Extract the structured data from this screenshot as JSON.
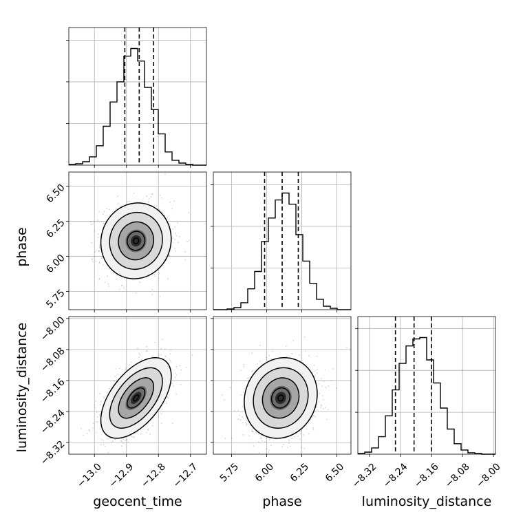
{
  "chart_data": {
    "type": "corner",
    "parameters": [
      "geocent_time",
      "phase",
      "luminosity_distance"
    ],
    "axis_labels": {
      "geocent_time": "geocent_time",
      "phase": "phase",
      "luminosity_distance": "luminosity_distance"
    },
    "ranges": {
      "geocent_time": [
        -13.08,
        -12.65
      ],
      "phase": [
        5.62,
        6.6
      ],
      "luminosity_distance": [
        -8.35,
        -7.995
      ]
    },
    "ticks": {
      "geocent_time": {
        "values": [
          -13.0,
          -12.9,
          -12.8,
          -12.7
        ],
        "labels": [
          "−13.0",
          "−12.9",
          "−12.8",
          "−12.7"
        ]
      },
      "phase": {
        "values": [
          5.75,
          6.0,
          6.25,
          6.5
        ],
        "labels": [
          "5.75",
          "6.00",
          "6.25",
          "6.50"
        ]
      },
      "luminosity_distance": {
        "values": [
          -8.32,
          -8.24,
          -8.16,
          -8.08,
          -8.0
        ],
        "labels": [
          "−8.32",
          "−8.24",
          "−8.16",
          "−8.08",
          "−8.00"
        ]
      }
    },
    "quantiles": {
      "geocent_time": [
        -12.905,
        -12.86,
        -12.815
      ],
      "phase": [
        5.985,
        6.11,
        6.225
      ],
      "luminosity_distance": [
        -8.253,
        -8.205,
        -8.16
      ]
    },
    "histograms": {
      "geocent_time": {
        "edges": [
          -13.08,
          -13.0585,
          -13.037,
          -13.0155,
          -12.994,
          -12.9725,
          -12.951,
          -12.9295,
          -12.908,
          -12.8865,
          -12.865,
          -12.8435,
          -12.822,
          -12.8005,
          -12.779,
          -12.7575,
          -12.736,
          -12.7145,
          -12.693,
          -12.6715,
          -12.65
        ],
        "counts": [
          1,
          2,
          5,
          12,
          28,
          56,
          91,
          120,
          157,
          168,
          150,
          112,
          80,
          45,
          19,
          7,
          3,
          1,
          0,
          0
        ]
      },
      "phase": {
        "edges": [
          5.62,
          5.669,
          5.718,
          5.767,
          5.816,
          5.865,
          5.914,
          5.963,
          6.012,
          6.061,
          6.11,
          6.159,
          6.208,
          6.257,
          6.306,
          6.355,
          6.404,
          6.453,
          6.502,
          6.551,
          6.6
        ],
        "counts": [
          0,
          0,
          1,
          3,
          10,
          30,
          55,
          98,
          132,
          158,
          168,
          152,
          108,
          70,
          38,
          15,
          5,
          2,
          0,
          0
        ]
      },
      "luminosity_distance": {
        "edges": [
          -8.35,
          -8.33225,
          -8.3145,
          -8.29675,
          -8.279,
          -8.26125,
          -8.2435,
          -8.22575,
          -8.208,
          -8.19025,
          -8.1725,
          -8.15475,
          -8.137,
          -8.11925,
          -8.1015,
          -8.08375,
          -8.066,
          -8.04825,
          -8.0305,
          -8.01275,
          -7.995
        ],
        "counts": [
          1,
          3,
          9,
          25,
          55,
          92,
          130,
          155,
          165,
          167,
          135,
          102,
          66,
          36,
          15,
          6,
          2,
          1,
          0,
          0
        ]
      }
    },
    "joint": [
      {
        "x": "geocent_time",
        "y": "phase",
        "center": [
          -12.87,
          6.11
        ],
        "std": [
          0.055,
          0.135
        ],
        "corr": 0.05
      },
      {
        "x": "geocent_time",
        "y": "luminosity_distance",
        "center": [
          -12.87,
          -8.205
        ],
        "std": [
          0.055,
          0.052
        ],
        "corr": 0.55
      },
      {
        "x": "phase",
        "y": "luminosity_distance",
        "center": [
          6.1,
          -8.205
        ],
        "std": [
          0.13,
          0.052
        ],
        "corr": 0.1
      }
    ]
  },
  "colors": {
    "contour": "#000000",
    "points": "#808080",
    "grid": "#b0b0b0"
  }
}
